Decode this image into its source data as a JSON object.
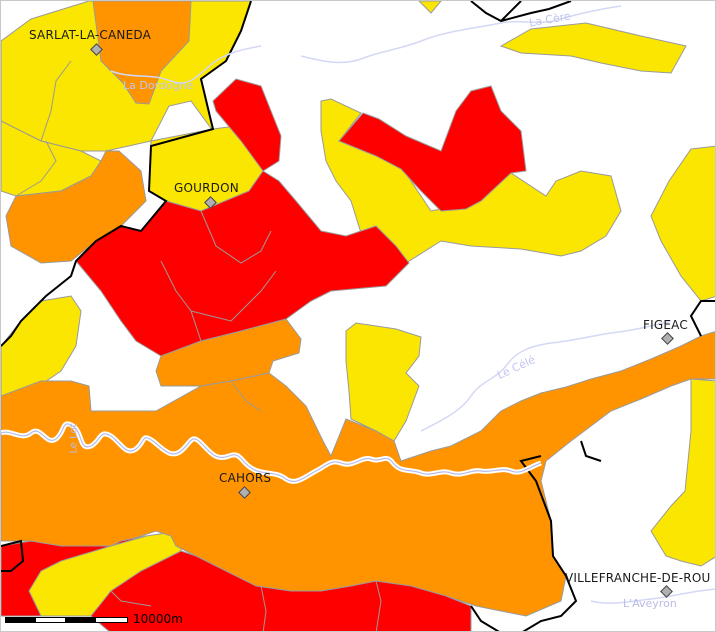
{
  "colors": {
    "red": "#ff0000",
    "orange": "#ff9400",
    "yellow": "#fae600",
    "border_gray": "#9a9a9a",
    "dept_border": "#000000",
    "river": "#d4d8f5",
    "river_label": "#c0c6ee"
  },
  "cities": [
    {
      "id": "sarlat",
      "name": "SARLAT-LA-CANEDA"
    },
    {
      "id": "gourdon",
      "name": "GOURDON"
    },
    {
      "id": "figeac",
      "name": "FIGEAC"
    },
    {
      "id": "cahors",
      "name": "CAHORS"
    },
    {
      "id": "villefranche",
      "name": "VILLEFRANCHE-DE-ROU"
    }
  ],
  "rivers": [
    {
      "id": "dordogne",
      "name": "La Dordogne"
    },
    {
      "id": "cere",
      "name": "La Cère"
    },
    {
      "id": "cele",
      "name": "Le Célé"
    },
    {
      "id": "aveyron",
      "name": "L'Aveyron"
    },
    {
      "id": "lot",
      "name": "Le Lot"
    }
  ],
  "scale_bar": {
    "label": "10000m"
  }
}
